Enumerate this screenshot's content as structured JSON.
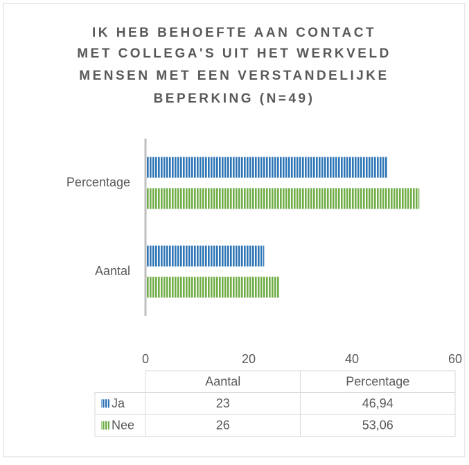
{
  "chart_data": {
    "type": "bar",
    "orientation": "horizontal",
    "title": [
      "IK HEB BEHOEFTE AAN CONTACT",
      "MET COLLEGA'S UIT HET WERKVELD",
      "MENSEN MET EEN VERSTANDELIJKE",
      "BEPERKING (N=49)"
    ],
    "categories": [
      "Aantal",
      "Percentage"
    ],
    "series": [
      {
        "name": "Ja",
        "color": "#2e75b6",
        "values": [
          23,
          46.94
        ],
        "value_labels": [
          "23",
          "46,94"
        ]
      },
      {
        "name": "Nee",
        "color": "#70ad47",
        "values": [
          26,
          53.06
        ],
        "value_labels": [
          "26",
          "53,06"
        ]
      }
    ],
    "xlim": [
      0,
      60
    ],
    "xticks": [
      0,
      20,
      40,
      60
    ],
    "grid": false,
    "data_table": true
  }
}
